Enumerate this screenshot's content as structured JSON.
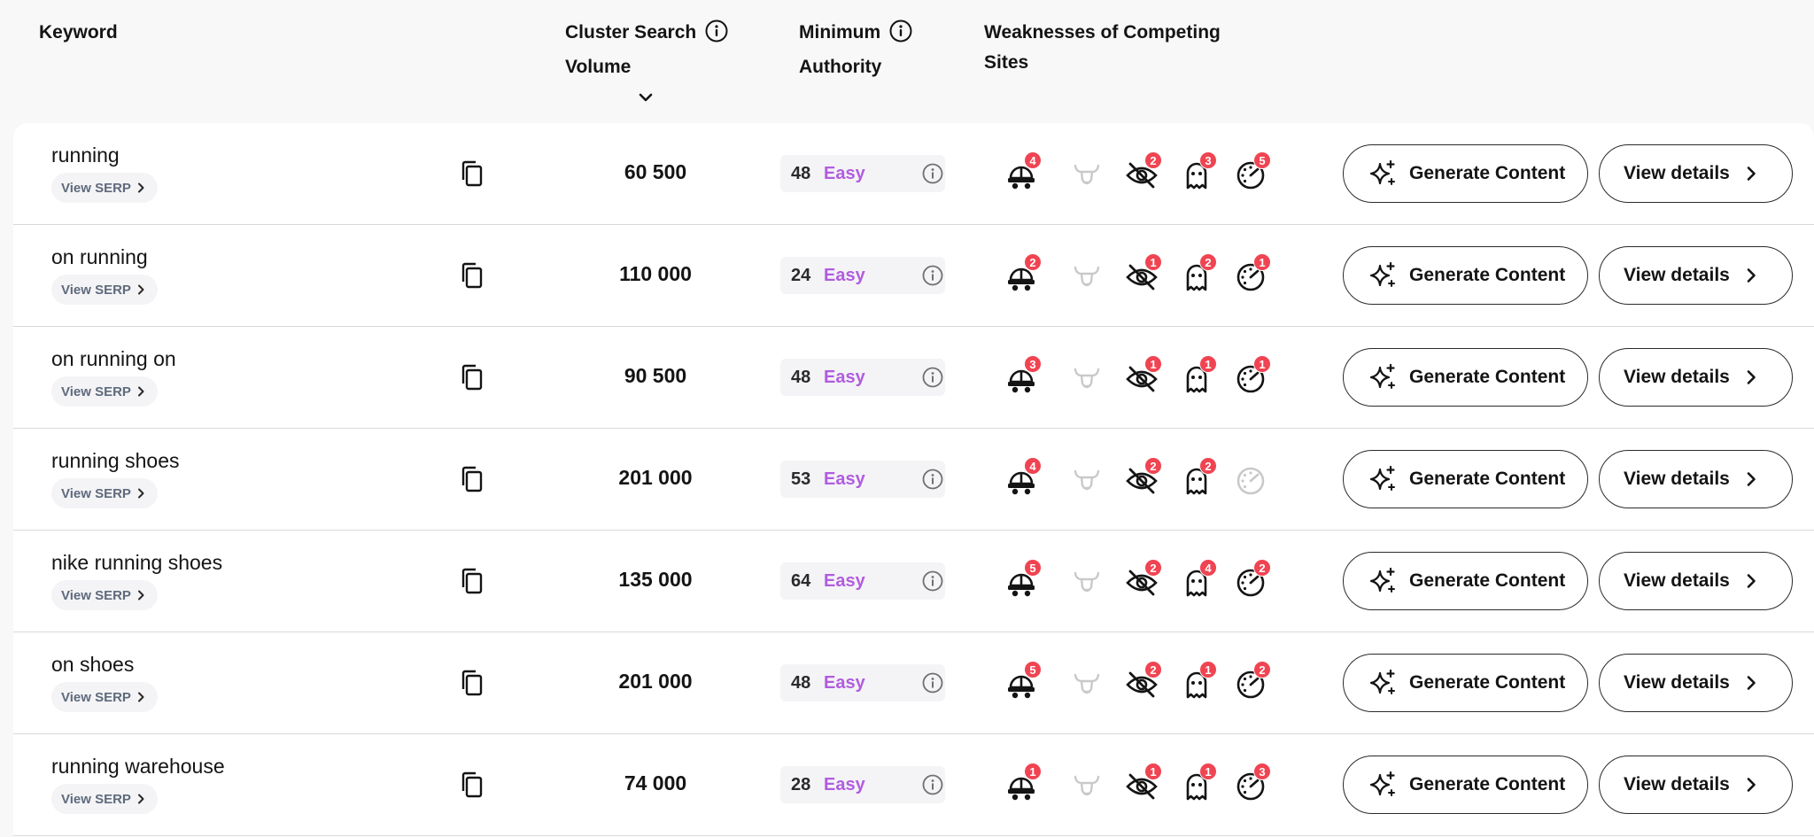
{
  "header": {
    "keyword": "Keyword",
    "volume_line1": "Cluster Search",
    "volume_line2": "Volume",
    "authority_line1": "Minimum",
    "authority_line2": "Authority",
    "weak_line1": "Weaknesses of Competing",
    "weak_line2": "Sites"
  },
  "labels": {
    "view_serp": "View SERP",
    "generate": "Generate Content",
    "details": "View details"
  },
  "icons": {
    "weakness": [
      "construction-icon",
      "bull-icon",
      "eye-slash-icon",
      "ghost-icon",
      "speedometer-icon"
    ],
    "copy": "copy-icon",
    "info": "info-icon",
    "sparkle": "sparkle-icon",
    "chevron": "chevron-right-icon",
    "sort": "chevron-down-icon"
  },
  "colors": {
    "easy": "#b15cdf",
    "badge": "#f04452",
    "inactive_icon": "#c9c9cc"
  },
  "rows": [
    {
      "keyword": "running",
      "volume": "60 500",
      "authority": "48",
      "level": "Easy",
      "badges": [
        "4",
        null,
        "2",
        "3",
        "5"
      ]
    },
    {
      "keyword": "on running",
      "volume": "110 000",
      "authority": "24",
      "level": "Easy",
      "badges": [
        "2",
        null,
        "1",
        "2",
        "1"
      ]
    },
    {
      "keyword": "on running on",
      "volume": "90 500",
      "authority": "48",
      "level": "Easy",
      "badges": [
        "3",
        null,
        "1",
        "1",
        "1"
      ]
    },
    {
      "keyword": "running shoes",
      "volume": "201 000",
      "authority": "53",
      "level": "Easy",
      "badges": [
        "4",
        null,
        "2",
        "2",
        null
      ]
    },
    {
      "keyword": "nike running shoes",
      "volume": "135 000",
      "authority": "64",
      "level": "Easy",
      "badges": [
        "5",
        null,
        "2",
        "4",
        "2"
      ]
    },
    {
      "keyword": "on shoes",
      "volume": "201 000",
      "authority": "48",
      "level": "Easy",
      "badges": [
        "5",
        null,
        "2",
        "1",
        "2"
      ]
    },
    {
      "keyword": "running warehouse",
      "volume": "74 000",
      "authority": "28",
      "level": "Easy",
      "badges": [
        "1",
        null,
        "1",
        "1",
        "3"
      ]
    }
  ]
}
